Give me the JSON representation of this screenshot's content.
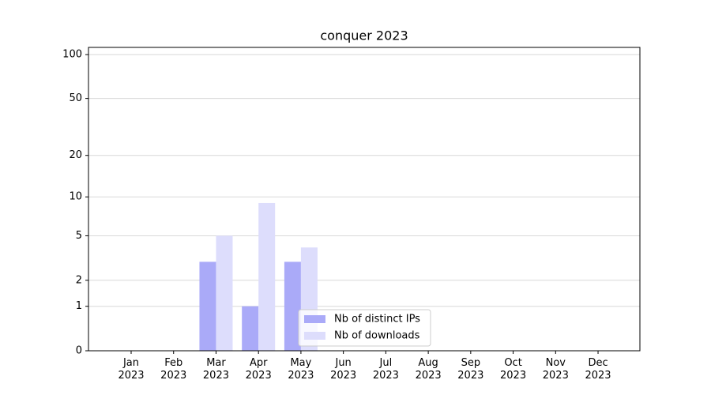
{
  "chart_data": {
    "type": "bar",
    "title": "conquer 2023",
    "categories": [
      "Jan\n2023",
      "Feb\n2023",
      "Mar\n2023",
      "Apr\n2023",
      "May\n2023",
      "Jun\n2023",
      "Jul\n2023",
      "Aug\n2023",
      "Sep\n2023",
      "Oct\n2023",
      "Nov\n2023",
      "Dec\n2023"
    ],
    "series": [
      {
        "name": "Nb of distinct IPs",
        "color": "#aaaaf8",
        "values": [
          0,
          0,
          3,
          1,
          3,
          0,
          0,
          0,
          0,
          0,
          0,
          0
        ]
      },
      {
        "name": "Nb of downloads",
        "color": "#ddddfc",
        "values": [
          0,
          0,
          5,
          9,
          4,
          0,
          0,
          0,
          0,
          0,
          0,
          0
        ]
      }
    ],
    "yscale": "log1p",
    "ylim": [
      0,
      112
    ],
    "yticks": [
      0,
      1,
      2,
      5,
      10,
      20,
      50,
      100
    ],
    "grid": true,
    "legend": "lower center"
  }
}
